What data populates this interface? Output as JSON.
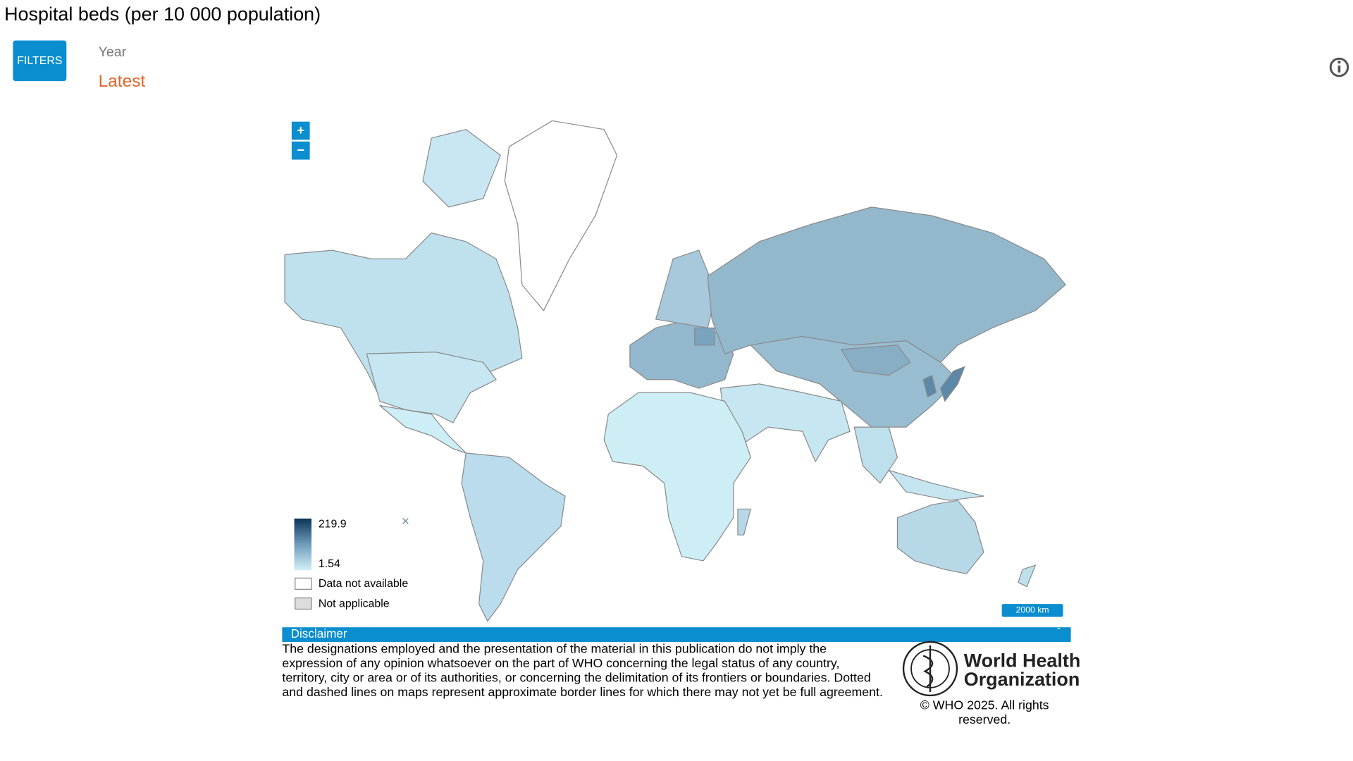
{
  "header": {
    "title": "Hospital beds (per 10 000 population)"
  },
  "filters": {
    "button": "FILTERS",
    "label": "Year",
    "value": "Latest"
  },
  "map": {
    "zoom_in": "+",
    "zoom_out": "−",
    "scale_bar": "2000 km",
    "legend": {
      "max": 219.9,
      "min": 1.54,
      "close": "×",
      "items": [
        "Data not available",
        "Not applicable"
      ]
    }
  },
  "disclaimer": {
    "title": "Disclaimer",
    "toggle": "ˆ",
    "lines": [
      "The designations employed and the presentation of the material in this publication do not imply the",
      "expression of any opinion whatsoever on the part of WHO concerning the legal status of any country,",
      "territory, city or area or of its authorities, or concerning the delimitation of its frontiers or boundaries. Dotted",
      "and dashed lines on maps represent approximate border lines for which there may not yet be full agreement."
    ]
  },
  "logo": {
    "line1": "World Health",
    "line2": "Organization"
  },
  "footer": {
    "copyright_lines": [
      "© WHO 2025. All rights",
      "reserved."
    ]
  }
}
